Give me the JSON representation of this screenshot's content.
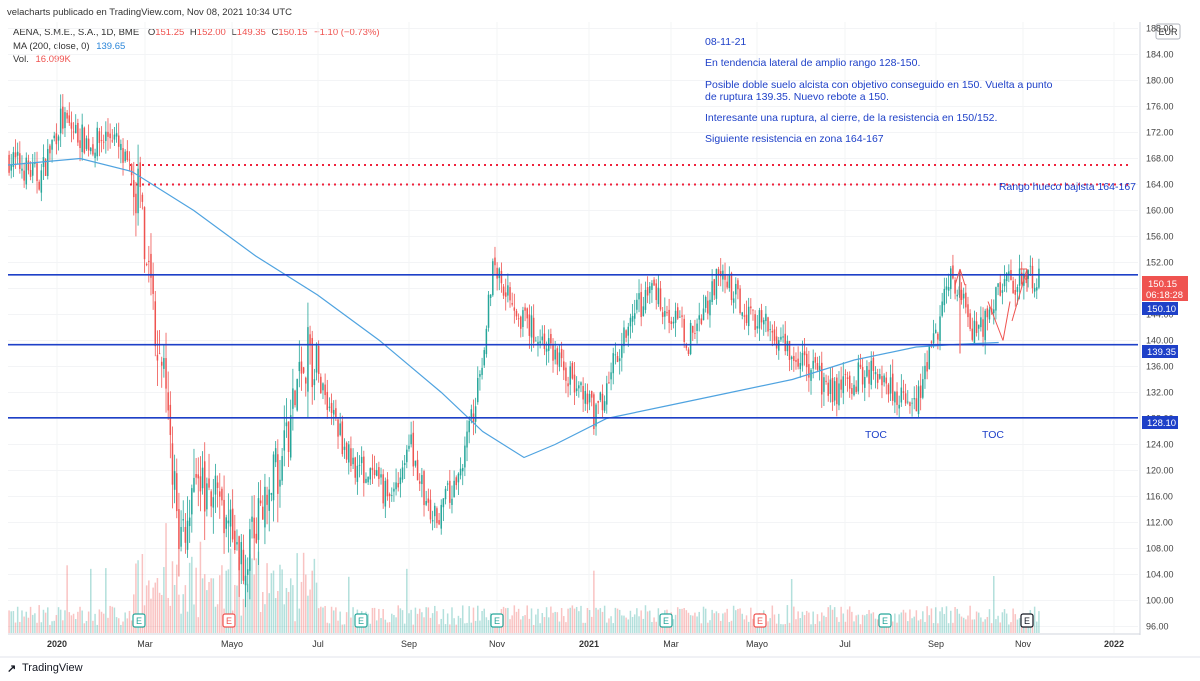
{
  "header": {
    "publisher": "velacharts publicado en TradingView.com, Nov 08, 2021 10:34 UTC",
    "symbol_line": "AENA, S.M.E., S.A., 1D, BME",
    "ohlc": {
      "o_label": "O",
      "o": "151.25",
      "h_label": "H",
      "h": "152.00",
      "l_label": "L",
      "l": "149.35",
      "c_label": "C",
      "c": "150.15",
      "change": "−1.10 (−0.73%)"
    },
    "ma_label": "MA (200, close, 0)",
    "ma_value": "139.65",
    "vol_label": "Vol.",
    "vol_value": "16.099K"
  },
  "currency": "EUR",
  "notes": [
    "08-11-21",
    "En tendencia lateral de amplio rango 128-150.",
    "Posible doble suelo alcista con objetivo conseguido en 150. Vuelta a punto",
    "de ruptura 139.35. Nuevo rebote a 150.",
    "Interesante una ruptura, al cierre, de la resistencia en 150/152.",
    "Siguiente resistencia en zona 164-167"
  ],
  "annotations": {
    "gap_label": "Rango hueco bajista 164-167",
    "toc1": "TOC",
    "toc2": "TOC"
  },
  "price_badges": {
    "last": "150.15",
    "countdown": "06:18:28",
    "res": "150.10",
    "mid": "139.35",
    "sup": "128.10"
  },
  "footer": {
    "brand": "TradingView"
  },
  "colors": {
    "up": "#26a69a",
    "down": "#ef5350",
    "ma": "#4fa3e0",
    "level": "#1e40c8",
    "gap": "#ef233c",
    "note": "#1e40c8"
  },
  "chart_data": {
    "type": "candlestick",
    "title": "AENA, S.M.E., S.A., 1D, BME",
    "ylim": [
      95,
      189
    ],
    "y_ticks": [
      "96.00",
      "100.00",
      "104.00",
      "108.00",
      "112.00",
      "116.00",
      "120.00",
      "124.00",
      "128.00",
      "132.00",
      "136.00",
      "140.00",
      "144.00",
      "148.00",
      "152.00",
      "156.00",
      "160.00",
      "164.00",
      "168.00",
      "172.00",
      "176.00",
      "180.00",
      "184.00",
      "188.00"
    ],
    "x_ticks": [
      "2020",
      "Mar",
      "Mayo",
      "Jul",
      "Sep",
      "Nov",
      "2021",
      "Mar",
      "Mayo",
      "Jul",
      "Sep",
      "Nov",
      "2022"
    ],
    "levels": [
      150.1,
      139.35,
      128.1
    ],
    "gap_zone": [
      164,
      167
    ],
    "price_path": [
      [
        0,
        168
      ],
      [
        0.03,
        165
      ],
      [
        0.05,
        174
      ],
      [
        0.08,
        170
      ],
      [
        0.1,
        172
      ],
      [
        0.11,
        168
      ],
      [
        0.125,
        163
      ],
      [
        0.135,
        150
      ],
      [
        0.15,
        135
      ],
      [
        0.165,
        110
      ],
      [
        0.19,
        118
      ],
      [
        0.23,
        106
      ],
      [
        0.26,
        120
      ],
      [
        0.29,
        139
      ],
      [
        0.33,
        122
      ],
      [
        0.37,
        116
      ],
      [
        0.39,
        124
      ],
      [
        0.41,
        112
      ],
      [
        0.435,
        118
      ],
      [
        0.455,
        132
      ],
      [
        0.47,
        152
      ],
      [
        0.5,
        143
      ],
      [
        0.53,
        138
      ],
      [
        0.57,
        128
      ],
      [
        0.6,
        143
      ],
      [
        0.625,
        148
      ],
      [
        0.66,
        140
      ],
      [
        0.69,
        150
      ],
      [
        0.72,
        144
      ],
      [
        0.75,
        140
      ],
      [
        0.8,
        132
      ],
      [
        0.84,
        136
      ],
      [
        0.88,
        129
      ],
      [
        0.915,
        150
      ],
      [
        0.94,
        140
      ],
      [
        0.96,
        148
      ],
      [
        1,
        150
      ]
    ],
    "ma200_path": [
      [
        0,
        167
      ],
      [
        0.07,
        168
      ],
      [
        0.12,
        166
      ],
      [
        0.18,
        160
      ],
      [
        0.24,
        153
      ],
      [
        0.3,
        147
      ],
      [
        0.36,
        140
      ],
      [
        0.42,
        132
      ],
      [
        0.46,
        126
      ],
      [
        0.5,
        122
      ],
      [
        0.53,
        124
      ],
      [
        0.58,
        128
      ],
      [
        0.64,
        130
      ],
      [
        0.7,
        132
      ],
      [
        0.76,
        134
      ],
      [
        0.82,
        137
      ],
      [
        0.88,
        139
      ],
      [
        0.92,
        139.4
      ],
      [
        0.96,
        139.7
      ]
    ],
    "bars": 480
  }
}
